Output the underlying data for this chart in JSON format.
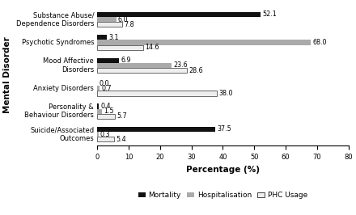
{
  "categories": [
    "Substance Abuse/\nDependence Disorders",
    "Psychotic Syndromes",
    "Mood Affective\nDisorders",
    "Anxiety Disorders",
    "Personality &\nBehaviour Disorders",
    "Suicide/Associated\nOutcomes"
  ],
  "mortality": [
    52.1,
    3.1,
    6.9,
    0.0,
    0.4,
    37.5
  ],
  "hospitalisation": [
    6.0,
    68.0,
    23.6,
    0.7,
    1.5,
    0.3
  ],
  "phc_usage": [
    7.8,
    14.6,
    28.6,
    38.0,
    5.7,
    5.4
  ],
  "mortality_color": "#111111",
  "hospitalisation_color": "#aaaaaa",
  "phc_usage_color": "#eeeeee",
  "xlabel": "Percentage (%)",
  "ylabel": "Mental Disorder",
  "xlim": [
    0,
    80
  ],
  "xticks": [
    0,
    10,
    20,
    30,
    40,
    50,
    60,
    70,
    80
  ],
  "legend_labels": [
    "Mortality",
    "Hospitalisation",
    "PHC Usage"
  ],
  "bar_height": 0.22,
  "label_fontsize": 5.8,
  "axis_fontsize": 7.5,
  "tick_fontsize": 6.0,
  "legend_fontsize": 6.5
}
